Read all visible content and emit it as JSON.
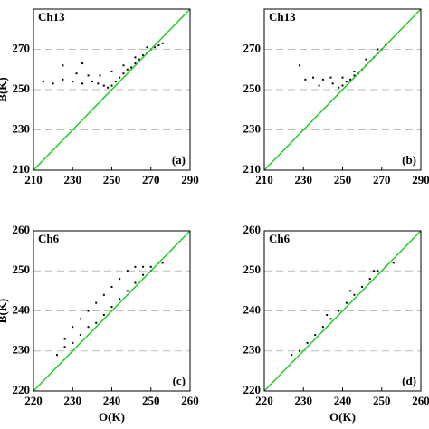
{
  "chart_data": [
    {
      "type": "scatter",
      "label": "Ch13",
      "annotation": "(a)",
      "y_label": "B(K)",
      "xlim": [
        210,
        290
      ],
      "ylim": [
        210,
        290
      ],
      "xticks": [
        210,
        230,
        250,
        270,
        290
      ],
      "yticks": [
        210,
        230,
        250,
        270
      ],
      "series": [
        {
          "color": "#000000",
          "x": [
            215,
            220,
            225,
            230,
            235,
            240,
            243,
            246,
            248,
            250,
            252,
            254,
            256,
            258,
            260,
            262,
            264,
            266,
            268,
            270,
            272,
            274,
            276,
            232,
            238,
            244,
            250,
            256,
            262,
            268,
            225,
            235
          ],
          "y": [
            254,
            253,
            255,
            254,
            253,
            254,
            253,
            252,
            251,
            252,
            254,
            256,
            258,
            260,
            261,
            263,
            265,
            267,
            268,
            270,
            271,
            272,
            273,
            258,
            257,
            257,
            259,
            262,
            266,
            271,
            262,
            263
          ]
        }
      ]
    },
    {
      "type": "scatter",
      "label": "Ch13",
      "annotation": "(b)",
      "xlim": [
        210,
        290
      ],
      "ylim": [
        210,
        290
      ],
      "xticks": [
        210,
        230,
        250,
        270,
        290
      ],
      "yticks": [
        210,
        230,
        250,
        270
      ],
      "series": [
        {
          "color": "#000000",
          "x": [
            228,
            235,
            240,
            245,
            248,
            250,
            252,
            254,
            256,
            258,
            260,
            262,
            264,
            266,
            268,
            270,
            272,
            244,
            250,
            256,
            262,
            268,
            231,
            238
          ],
          "y": [
            262,
            256,
            255,
            253,
            251,
            252,
            254,
            255,
            257,
            258,
            260,
            262,
            264,
            266,
            268,
            270,
            272,
            256,
            256,
            259,
            265,
            270,
            255,
            252
          ]
        }
      ]
    },
    {
      "type": "scatter",
      "label": "Ch6",
      "annotation": "(c)",
      "y_label": "B(K)",
      "x_label": "O(K)",
      "xlim": [
        220,
        260
      ],
      "ylim": [
        220,
        260
      ],
      "xticks": [
        220,
        230,
        240,
        250,
        260
      ],
      "yticks": [
        220,
        230,
        240,
        250,
        260
      ],
      "series": [
        {
          "color": "#000000",
          "x": [
            226,
            228,
            230,
            232,
            234,
            236,
            238,
            240,
            242,
            244,
            246,
            248,
            250,
            252,
            253,
            230,
            234,
            238,
            242,
            246,
            250,
            228,
            232,
            236,
            240,
            244,
            248
          ],
          "y": [
            229,
            231,
            232,
            234,
            236,
            237,
            239,
            241,
            243,
            245,
            247,
            249,
            250,
            252,
            252,
            236,
            240,
            244,
            248,
            251,
            251,
            233,
            238,
            242,
            246,
            250,
            251
          ]
        }
      ]
    },
    {
      "type": "scatter",
      "label": "Ch6",
      "annotation": "(d)",
      "x_label": "O(K)",
      "xlim": [
        220,
        260
      ],
      "ylim": [
        220,
        260
      ],
      "xticks": [
        220,
        230,
        240,
        250,
        260
      ],
      "yticks": [
        220,
        230,
        240,
        250,
        260
      ],
      "series": [
        {
          "color": "#000000",
          "x": [
            227,
            229,
            231,
            233,
            235,
            237,
            239,
            241,
            243,
            245,
            247,
            249,
            251,
            253,
            236,
            242,
            248
          ],
          "y": [
            229,
            230,
            232,
            234,
            236,
            238,
            240,
            242,
            244,
            246,
            248,
            250,
            251,
            252,
            239,
            245,
            250
          ]
        }
      ]
    }
  ]
}
